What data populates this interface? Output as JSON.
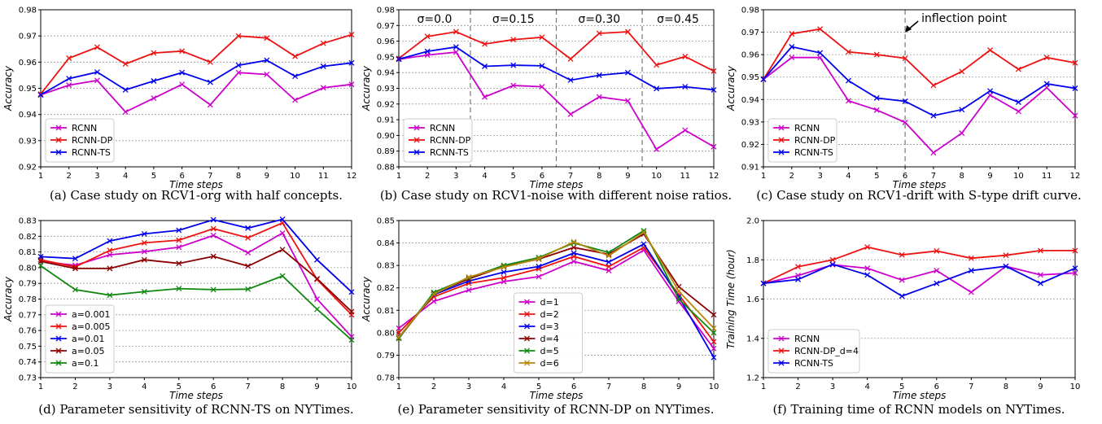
{
  "figure": {
    "background": "#ffffff",
    "colors": {
      "magenta": "#cc00cc",
      "red": "#ee1111",
      "blue": "#0000ee",
      "darkred": "#8b0000",
      "green": "#118811",
      "olive": "#b8860b",
      "grid": "#999999",
      "divider": "#777777"
    }
  },
  "chart_data": [
    {
      "id": "a",
      "type": "line",
      "caption": "(a) Case study on RCV1-org with half concepts.",
      "xlabel": "Time steps",
      "ylabel": "Accuracy",
      "xlim": [
        1,
        12
      ],
      "ylim": [
        0.92,
        0.98
      ],
      "xticks": [
        1,
        2,
        3,
        4,
        5,
        6,
        7,
        8,
        9,
        10,
        11,
        12
      ],
      "yticks": [
        0.92,
        0.93,
        0.94,
        0.95,
        0.96,
        0.97,
        0.98
      ],
      "ytick_labels": [
        "0.92",
        "0.93",
        "0.94",
        "0.95",
        "0.96",
        "0.97",
        "0.98"
      ],
      "grid": "horizontal-dotted",
      "legend_position": "lower-left",
      "x": [
        1,
        2,
        3,
        4,
        5,
        6,
        7,
        8,
        9,
        10,
        11,
        12
      ],
      "series": [
        {
          "name": "RCNN",
          "color": "#cc00cc",
          "values": [
            0.9475,
            0.9512,
            0.953,
            0.941,
            0.9462,
            0.9515,
            0.9437,
            0.956,
            0.9553,
            0.9455,
            0.9502,
            0.9515
          ]
        },
        {
          "name": "RCNN-DP",
          "color": "#ee1111",
          "values": [
            0.9478,
            0.9615,
            0.9657,
            0.9593,
            0.9635,
            0.9642,
            0.96,
            0.97,
            0.9692,
            0.9622,
            0.9672,
            0.9705
          ]
        },
        {
          "name": "RCNN-TS",
          "color": "#0000ee",
          "values": [
            0.9475,
            0.9537,
            0.9562,
            0.9494,
            0.9528,
            0.956,
            0.9523,
            0.9588,
            0.9607,
            0.9546,
            0.9584,
            0.9597
          ]
        }
      ]
    },
    {
      "id": "b",
      "type": "line",
      "caption": "(b) Case study on RCV1-noise with different noise ratios.",
      "xlabel": "Time steps",
      "ylabel": "Accuracy",
      "xlim": [
        1,
        12
      ],
      "ylim": [
        0.88,
        0.98
      ],
      "xticks": [
        1,
        2,
        3,
        4,
        5,
        6,
        7,
        8,
        9,
        10,
        11,
        12
      ],
      "yticks": [
        0.88,
        0.89,
        0.9,
        0.91,
        0.92,
        0.93,
        0.94,
        0.95,
        0.96,
        0.97,
        0.98
      ],
      "ytick_labels": [
        "0.88",
        "0.89",
        "0.90",
        "0.91",
        "0.92",
        "0.93",
        "0.94",
        "0.95",
        "0.96",
        "0.97",
        "0.98"
      ],
      "grid": "horizontal-dotted",
      "legend_position": "lower-left",
      "dividers": [
        3.5,
        6.5,
        9.5
      ],
      "region_labels": [
        {
          "text": "σ=0.0",
          "x": 2.25
        },
        {
          "text": "σ=0.15",
          "x": 5.0
        },
        {
          "text": "σ=0.30",
          "x": 8.0
        },
        {
          "text": "σ=0.45",
          "x": 10.75
        }
      ],
      "x": [
        1,
        2,
        3,
        4,
        5,
        6,
        7,
        8,
        9,
        10,
        11,
        12
      ],
      "series": [
        {
          "name": "RCNN",
          "color": "#cc00cc",
          "values": [
            0.9485,
            0.9512,
            0.953,
            0.9245,
            0.9318,
            0.931,
            0.9135,
            0.9245,
            0.922,
            0.8912,
            0.9033,
            0.8928
          ]
        },
        {
          "name": "RCNN-DP",
          "color": "#ee1111",
          "values": [
            0.949,
            0.963,
            0.966,
            0.9582,
            0.961,
            0.9625,
            0.9487,
            0.965,
            0.966,
            0.9448,
            0.9502,
            0.941
          ]
        },
        {
          "name": "RCNN-TS",
          "color": "#0000ee",
          "values": [
            0.9485,
            0.9535,
            0.9563,
            0.944,
            0.9447,
            0.9443,
            0.9352,
            0.9383,
            0.94,
            0.9298,
            0.931,
            0.929
          ]
        }
      ]
    },
    {
      "id": "c",
      "type": "line",
      "caption": "(c) Case study on RCV1-drift with S-type drift curve.",
      "xlabel": "Time steps",
      "ylabel": "Accuracy",
      "xlim": [
        1,
        12
      ],
      "ylim": [
        0.91,
        0.98
      ],
      "xticks": [
        1,
        2,
        3,
        4,
        5,
        6,
        7,
        8,
        9,
        10,
        11,
        12
      ],
      "yticks": [
        0.91,
        0.92,
        0.93,
        0.94,
        0.95,
        0.96,
        0.97,
        0.98
      ],
      "ytick_labels": [
        "0.91",
        "0.92",
        "0.93",
        "0.94",
        "0.95",
        "0.96",
        "0.97",
        "0.98"
      ],
      "grid": "horizontal-dotted",
      "legend_position": "lower-left",
      "dividers": [
        6
      ],
      "annotation": {
        "text": "inflection point",
        "x": 6
      },
      "x": [
        1,
        2,
        3,
        4,
        5,
        6,
        7,
        8,
        9,
        10,
        11,
        12
      ],
      "series": [
        {
          "name": "RCNN",
          "color": "#cc00cc",
          "values": [
            0.949,
            0.9587,
            0.9587,
            0.9394,
            0.9353,
            0.9298,
            0.9163,
            0.925,
            0.942,
            0.9347,
            0.9453,
            0.9328
          ]
        },
        {
          "name": "RCNN-DP",
          "color": "#ee1111",
          "values": [
            0.949,
            0.9693,
            0.9714,
            0.9612,
            0.96,
            0.9584,
            0.9463,
            0.9525,
            0.962,
            0.9535,
            0.9587,
            0.9563
          ]
        },
        {
          "name": "RCNN-TS",
          "color": "#0000ee",
          "values": [
            0.949,
            0.9635,
            0.9608,
            0.9484,
            0.9407,
            0.9392,
            0.9328,
            0.9355,
            0.9438,
            0.9388,
            0.947,
            0.945
          ]
        }
      ]
    },
    {
      "id": "d",
      "type": "line",
      "caption": "(d) Parameter sensitivity of RCNN-TS on NYTimes.",
      "xlabel": "Time steps",
      "ylabel": "Accuracy",
      "xlim": [
        1,
        10
      ],
      "ylim": [
        0.73,
        0.83
      ],
      "xticks": [
        1,
        2,
        3,
        4,
        5,
        6,
        7,
        8,
        9,
        10
      ],
      "yticks": [
        0.73,
        0.74,
        0.75,
        0.76,
        0.77,
        0.78,
        0.79,
        0.8,
        0.81,
        0.82,
        0.83
      ],
      "ytick_labels": [
        "0.73",
        "0.74",
        "0.75",
        "0.76",
        "0.77",
        "0.78",
        "0.79",
        "0.80",
        "0.81",
        "0.82",
        "0.83"
      ],
      "grid": "horizontal-dotted",
      "legend_position": "lower-left",
      "x": [
        1,
        2,
        3,
        4,
        5,
        6,
        7,
        8,
        9,
        10
      ],
      "series": [
        {
          "name": "a=0.001",
          "color": "#cc00cc",
          "values": [
            0.804,
            0.8015,
            0.8082,
            0.8102,
            0.813,
            0.8205,
            0.8095,
            0.822,
            0.78,
            0.756
          ]
        },
        {
          "name": "a=0.005",
          "color": "#ee1111",
          "values": [
            0.805,
            0.8005,
            0.811,
            0.8158,
            0.8175,
            0.8248,
            0.819,
            0.8285,
            0.7925,
            0.77
          ]
        },
        {
          "name": "a=0.01",
          "color": "#0000ee",
          "values": [
            0.807,
            0.8058,
            0.817,
            0.8215,
            0.8238,
            0.8305,
            0.8252,
            0.8308,
            0.805,
            0.7845
          ]
        },
        {
          "name": "a=0.05",
          "color": "#8b0000",
          "values": [
            0.804,
            0.7995,
            0.7995,
            0.805,
            0.8027,
            0.8072,
            0.801,
            0.8115,
            0.793,
            0.772
          ]
        },
        {
          "name": "a=0.1",
          "color": "#118811",
          "values": [
            0.8012,
            0.786,
            0.7825,
            0.7847,
            0.7867,
            0.786,
            0.7863,
            0.7947,
            0.7735,
            0.754
          ]
        }
      ]
    },
    {
      "id": "e",
      "type": "line",
      "caption": "(e) Parameter sensitivity of RCNN-DP on NYTimes.",
      "xlabel": "Time steps",
      "ylabel": "Accuracy",
      "xlim": [
        1,
        10
      ],
      "ylim": [
        0.78,
        0.85
      ],
      "xticks": [
        1,
        2,
        3,
        4,
        5,
        6,
        7,
        8,
        9,
        10
      ],
      "yticks": [
        0.78,
        0.79,
        0.8,
        0.81,
        0.82,
        0.83,
        0.84,
        0.85
      ],
      "ytick_labels": [
        "0.78",
        "0.79",
        "0.80",
        "0.81",
        "0.82",
        "0.83",
        "0.84",
        "0.85"
      ],
      "grid": "horizontal-dotted",
      "legend_position": "lower-center",
      "x": [
        1,
        2,
        3,
        4,
        5,
        6,
        7,
        8,
        9,
        10
      ],
      "series": [
        {
          "name": "d=1",
          "color": "#cc00cc",
          "values": [
            0.802,
            0.814,
            0.819,
            0.8228,
            0.825,
            0.8318,
            0.8277,
            0.8368,
            0.814,
            0.793
          ]
        },
        {
          "name": "d=2",
          "color": "#ee1111",
          "values": [
            0.8,
            0.816,
            0.822,
            0.8245,
            0.8285,
            0.834,
            0.8295,
            0.838,
            0.817,
            0.796
          ]
        },
        {
          "name": "d=3",
          "color": "#0000ee",
          "values": [
            0.798,
            0.817,
            0.823,
            0.827,
            0.8295,
            0.8355,
            0.8315,
            0.8395,
            0.816,
            0.789
          ]
        },
        {
          "name": "d=4",
          "color": "#8b0000",
          "values": [
            0.7975,
            0.8175,
            0.824,
            0.8295,
            0.8328,
            0.838,
            0.835,
            0.844,
            0.8205,
            0.808
          ]
        },
        {
          "name": "d=5",
          "color": "#118811",
          "values": [
            0.7975,
            0.818,
            0.8245,
            0.83,
            0.8335,
            0.84,
            0.8358,
            0.8455,
            0.815,
            0.8
          ]
        },
        {
          "name": "d=6",
          "color": "#b8860b",
          "values": [
            0.798,
            0.8172,
            0.8248,
            0.8292,
            0.833,
            0.8405,
            0.8343,
            0.8448,
            0.8185,
            0.802
          ]
        }
      ]
    },
    {
      "id": "f",
      "type": "line",
      "caption": "(f) Training time of RCNN models on NYTimes.",
      "xlabel": "Time steps",
      "ylabel": "Training Time (hour)",
      "xlim": [
        1,
        10
      ],
      "ylim": [
        1.2,
        2.0
      ],
      "xticks": [
        1,
        2,
        3,
        4,
        5,
        6,
        7,
        8,
        9,
        10
      ],
      "yticks": [
        1.2,
        1.4,
        1.6,
        1.8,
        2.0
      ],
      "ytick_labels": [
        "1.2",
        "1.4",
        "1.6",
        "1.8",
        "2.0"
      ],
      "grid": "horizontal-dotted",
      "legend_position": "lower-left",
      "x": [
        1,
        2,
        3,
        4,
        5,
        6,
        7,
        8,
        9,
        10
      ],
      "series": [
        {
          "name": "RCNN",
          "color": "#cc00cc",
          "values": [
            1.68,
            1.72,
            1.775,
            1.757,
            1.697,
            1.745,
            1.635,
            1.767,
            1.723,
            1.733
          ]
        },
        {
          "name": "RCNN-DP_d=4",
          "color": "#ee1111",
          "values": [
            1.68,
            1.765,
            1.8,
            1.865,
            1.825,
            1.845,
            1.808,
            1.823,
            1.847,
            1.847
          ]
        },
        {
          "name": "RCNN-TS",
          "color": "#0000ee",
          "values": [
            1.68,
            1.7,
            1.777,
            1.723,
            1.615,
            1.68,
            1.745,
            1.767,
            1.68,
            1.757
          ]
        }
      ]
    }
  ]
}
